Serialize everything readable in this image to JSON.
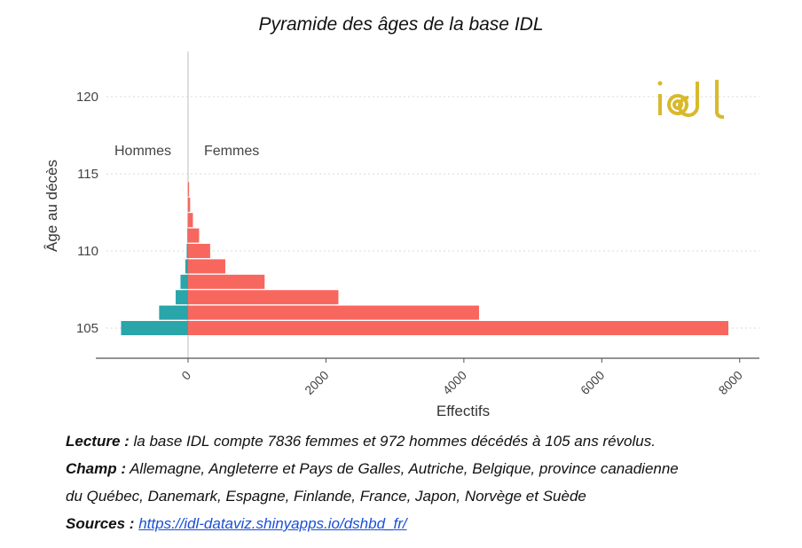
{
  "title": "Pyramide des âges de la base IDL",
  "chart_data": {
    "type": "bar",
    "orientation": "horizontal",
    "ylabel": "Âge au décès",
    "xlabel": "Effectifs",
    "y_ticks": [
      "105",
      "110",
      "115",
      "120"
    ],
    "x_ticks": [
      "0",
      "2000",
      "4000",
      "6000",
      "8000"
    ],
    "xlim": [
      -1350,
      8450
    ],
    "ylim": [
      103,
      121
    ],
    "grid": true,
    "categories": [
      105,
      106,
      107,
      108,
      109,
      110,
      111,
      112,
      113,
      114
    ],
    "series": [
      {
        "name": "Hommes",
        "color": "#2aa5aa",
        "values": [
          972,
          420,
          180,
          110,
          40,
          20,
          10,
          5,
          3,
          2
        ]
      },
      {
        "name": "Femmes",
        "color": "#f8675e",
        "values": [
          7836,
          4220,
          2180,
          1110,
          540,
          320,
          160,
          70,
          30,
          15
        ]
      }
    ]
  },
  "notes": {
    "lecture_label": "Lecture :",
    "lecture_text": " la base IDL compte 7836 femmes et 972 hommes décédés à 105 ans révolus.",
    "champ_label": "Champ :",
    "champ_text_1": " Allemagne, Angleterre et Pays de Galles, Autriche, Belgique, province canadienne",
    "champ_text_2": "du Québec, Danemark, Espagne, Finlande, France, Japon, Norvège et Suède",
    "sources_label": "Sources :",
    "sources_link": "https://idl-dataviz.shinyapps.io/dshbd_fr/"
  },
  "logo": {
    "text": "idl",
    "color": "#d9b92b"
  }
}
